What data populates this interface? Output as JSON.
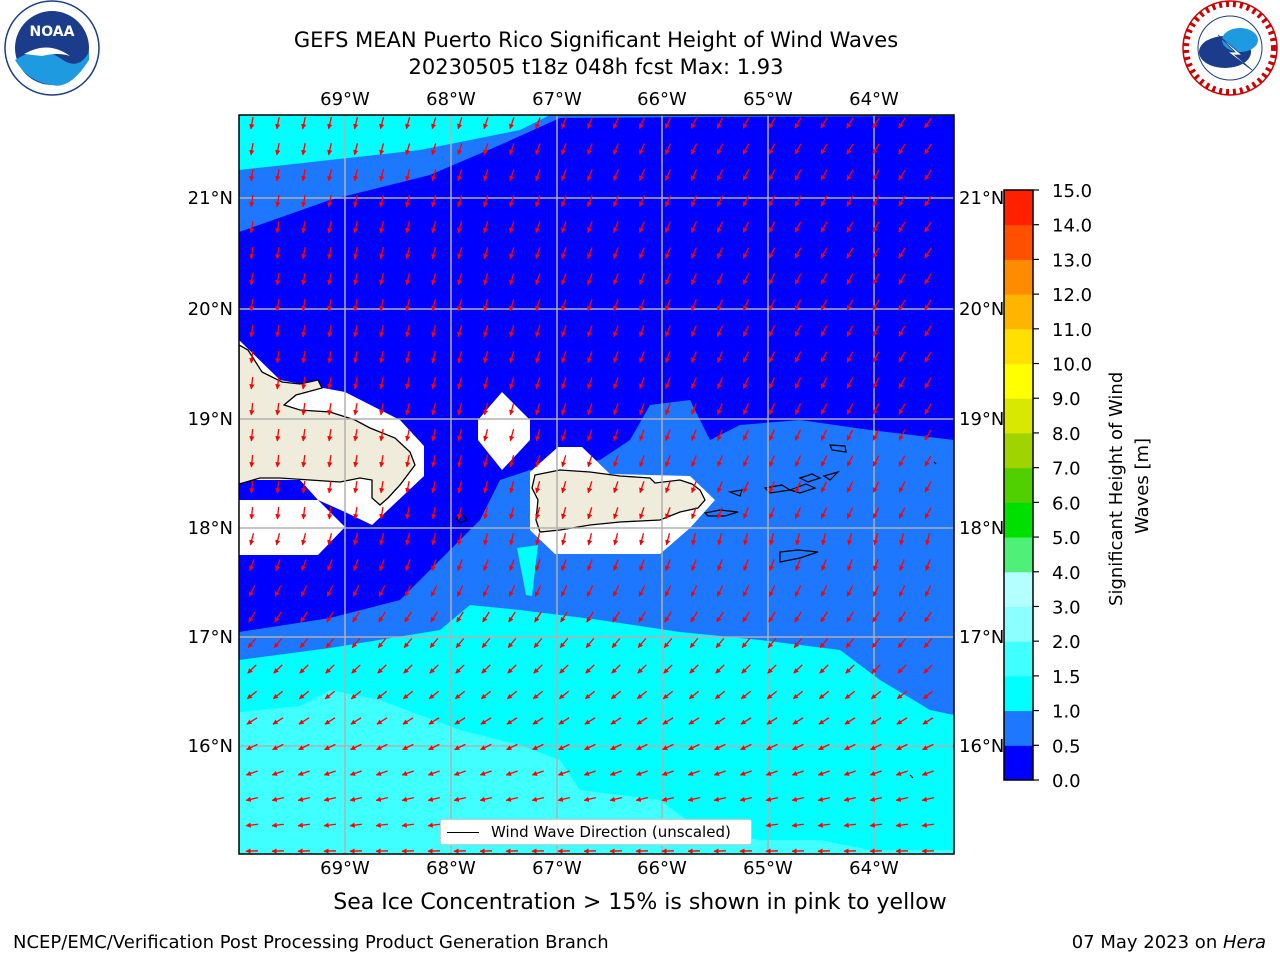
{
  "header": {
    "title_line1": "GEFS MEAN Puerto Rico Significant Height of Wind Waves",
    "title_line2": "20230505 t18z 048h fcst   Max: 1.93"
  },
  "logos": {
    "left": {
      "name": "noaa-logo",
      "text": "NOAA"
    },
    "right": {
      "name": "nws-logo",
      "text": "NATIONAL WEATHER SERVICE"
    }
  },
  "map": {
    "lon_labels": [
      "69°W",
      "68°W",
      "67°W",
      "66°W",
      "65°W",
      "64°W"
    ],
    "lat_labels": [
      "21°N",
      "20°N",
      "19°N",
      "18°N",
      "17°N",
      "16°N"
    ],
    "legend_label": "Wind Wave Direction (unscaled)"
  },
  "colorbar": {
    "label": "Significant Height of Wind Waves [m]",
    "ticks": [
      "0.0",
      "0.5",
      "1.0",
      "1.5",
      "2.0",
      "3.0",
      "4.0",
      "5.0",
      "6.0",
      "7.0",
      "8.0",
      "9.0",
      "10.0",
      "11.0",
      "12.0",
      "13.0",
      "14.0",
      "15.0"
    ],
    "colors": [
      "#0000ff",
      "#1e78ff",
      "#00ffff",
      "#40ffff",
      "#8cffff",
      "#b4ffff",
      "#50f078",
      "#00e000",
      "#50d000",
      "#a0d400",
      "#d8e800",
      "#ffff00",
      "#ffe000",
      "#ffb400",
      "#ff8c00",
      "#ff5000",
      "#ff2000",
      "#ff0000"
    ]
  },
  "footer": {
    "note": "Sea Ice Concentration > 15% is shown in pink to yellow",
    "left": "NCEP/EMC/Verification Post Processing Product Generation Branch",
    "right_date": "07 May 2023 on ",
    "right_host": "Hera"
  }
}
